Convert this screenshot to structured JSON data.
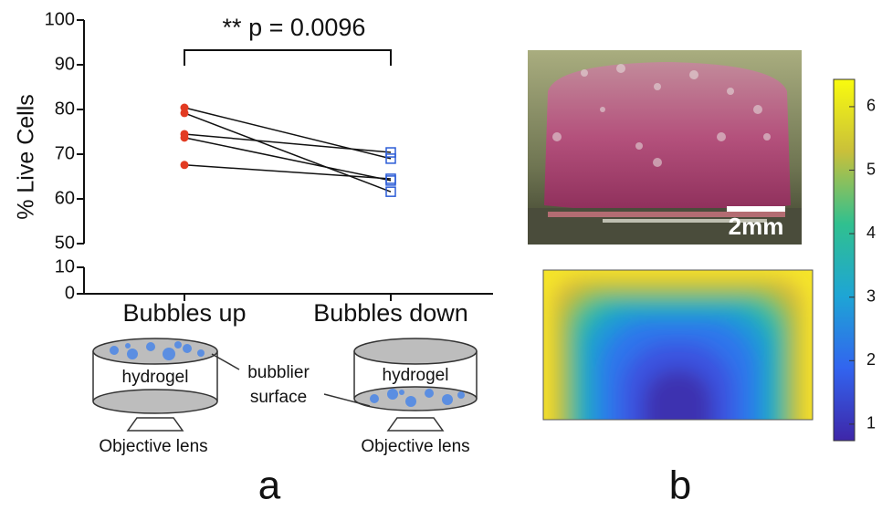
{
  "chart_data": {
    "type": "paired",
    "annotation": "** p = 0.0096",
    "y_label": "% Live Cells",
    "categories": [
      "Bubbles up",
      "Bubbles down"
    ],
    "marker_colors": [
      "#e23b22",
      "#2a5bd6"
    ],
    "series": [
      {
        "values": [
          80.4,
          69.0
        ]
      },
      {
        "values": [
          79.2,
          61.6
        ]
      },
      {
        "values": [
          74.5,
          70.4
        ]
      },
      {
        "values": [
          73.7,
          64.1
        ]
      },
      {
        "values": [
          67.6,
          64.5
        ]
      }
    ],
    "ylim": [
      0,
      100
    ],
    "ybreak": [
      10,
      50
    ],
    "yticks": [
      0,
      10,
      50,
      60,
      70,
      80,
      90,
      100
    ]
  },
  "diagram": {
    "left_gel": "hydrogel",
    "right_gel": "hydrogel",
    "callout": [
      "bubblier",
      "surface"
    ],
    "left_lens": "Objective lens",
    "right_lens": "Objective lens"
  },
  "photo": {
    "scale_bar": "2mm"
  },
  "colorbar": {
    "lim": [
      0.74,
      6.43
    ],
    "ticks": [
      1,
      2,
      3,
      4,
      5,
      6
    ]
  },
  "panel_labels": [
    "a",
    "b"
  ]
}
